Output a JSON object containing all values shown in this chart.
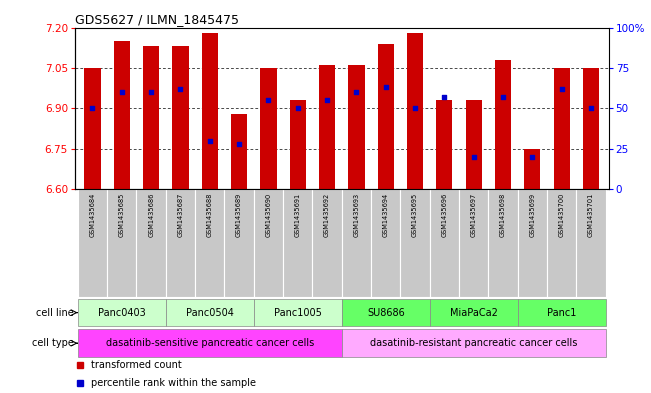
{
  "title": "GDS5627 / ILMN_1845475",
  "samples": [
    "GSM1435684",
    "GSM1435685",
    "GSM1435686",
    "GSM1435687",
    "GSM1435688",
    "GSM1435689",
    "GSM1435690",
    "GSM1435691",
    "GSM1435692",
    "GSM1435693",
    "GSM1435694",
    "GSM1435695",
    "GSM1435696",
    "GSM1435697",
    "GSM1435698",
    "GSM1435699",
    "GSM1435700",
    "GSM1435701"
  ],
  "bar_values": [
    7.05,
    7.15,
    7.13,
    7.13,
    7.18,
    6.88,
    7.05,
    6.93,
    7.06,
    7.06,
    7.14,
    7.18,
    6.93,
    6.93,
    7.08,
    6.75,
    7.05,
    7.05
  ],
  "percentile_values": [
    50,
    60,
    60,
    62,
    30,
    28,
    55,
    50,
    55,
    60,
    63,
    50,
    57,
    20,
    57,
    20,
    62,
    50
  ],
  "ylim_left": [
    6.6,
    7.2
  ],
  "ylim_right": [
    0,
    100
  ],
  "yticks_left": [
    6.6,
    6.75,
    6.9,
    7.05,
    7.2
  ],
  "yticks_right": [
    0,
    25,
    50,
    75,
    100
  ],
  "bar_color": "#CC0000",
  "dot_color": "#0000CC",
  "sample_box_color": "#c8c8c8",
  "cell_lines": [
    {
      "name": "Panc0403",
      "start": 0,
      "end": 2,
      "color": "#ccffcc"
    },
    {
      "name": "Panc0504",
      "start": 3,
      "end": 5,
      "color": "#ccffcc"
    },
    {
      "name": "Panc1005",
      "start": 6,
      "end": 8,
      "color": "#ccffcc"
    },
    {
      "name": "SU8686",
      "start": 9,
      "end": 11,
      "color": "#66ff66"
    },
    {
      "name": "MiaPaCa2",
      "start": 12,
      "end": 14,
      "color": "#66ff66"
    },
    {
      "name": "Panc1",
      "start": 15,
      "end": 17,
      "color": "#66ff66"
    }
  ],
  "cell_type_sensitive": {
    "label": "dasatinib-sensitive pancreatic cancer cells",
    "start": 0,
    "end": 8,
    "color": "#ff44ff"
  },
  "cell_type_resistant": {
    "label": "dasatinib-resistant pancreatic cancer cells",
    "start": 9,
    "end": 17,
    "color": "#ffaaff"
  },
  "cell_line_label": "cell line",
  "cell_type_label": "cell type",
  "legend_color_red": "#CC0000",
  "legend_color_blue": "#0000CC",
  "legend_transformed": "transformed count",
  "legend_percentile": "percentile rank within the sample"
}
